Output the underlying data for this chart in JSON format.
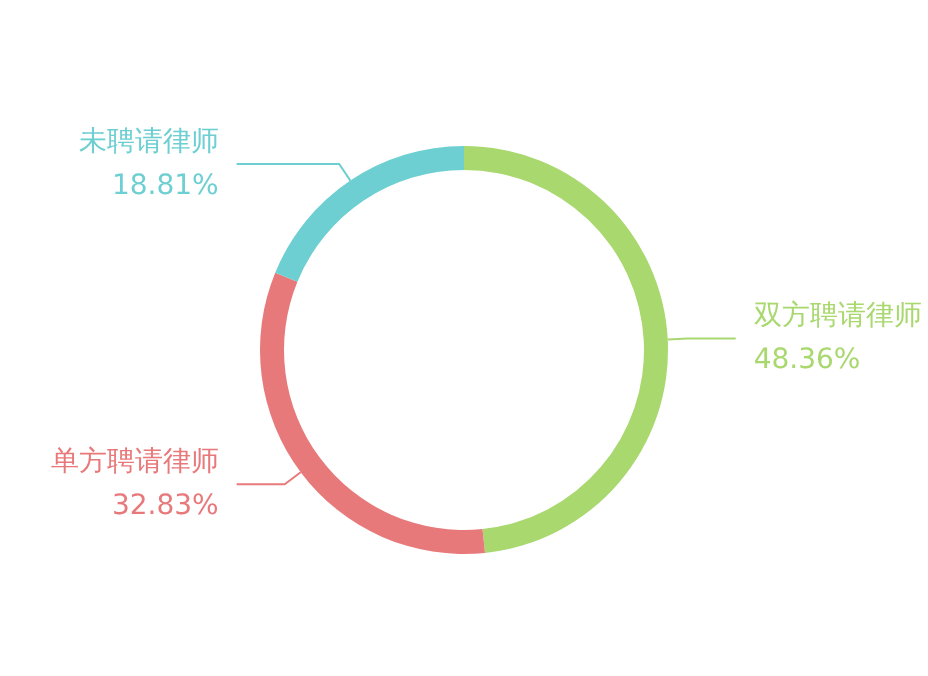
{
  "chart_data": {
    "type": "donut",
    "categories": [
      "双方聘请律师",
      "单方聘请律师",
      "未聘请律师"
    ],
    "values": [
      48.36,
      32.83,
      18.81
    ],
    "value_labels": [
      "48.36%",
      "32.83%",
      "18.81%"
    ],
    "colors": [
      "#a8d86e",
      "#e8797b",
      "#6dcfd1"
    ],
    "legend": false
  }
}
